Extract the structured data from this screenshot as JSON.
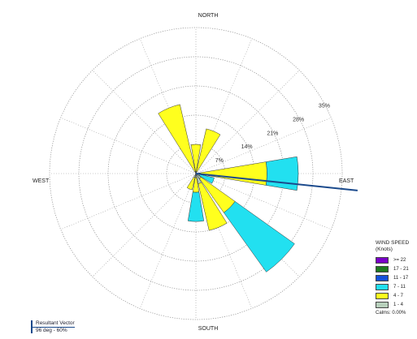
{
  "chart_data": {
    "type": "windrose",
    "directions": {
      "north": "NORTH",
      "south": "SOUTH",
      "east": "EAST",
      "west": "WEST"
    },
    "ring_labels": [
      "7%",
      "14%",
      "21%",
      "28%",
      "35%"
    ],
    "ring_values": [
      7,
      14,
      21,
      28,
      35
    ],
    "grid": true,
    "spokes": 16,
    "speed_bins": [
      {
        "label": ">= 22",
        "color": "#7a00c8"
      },
      {
        "label": "17 - 21",
        "color": "#1e7a1e"
      },
      {
        "label": "11 - 17",
        "color": "#1450d8"
      },
      {
        "label": "7 - 11",
        "color": "#22e0f0"
      },
      {
        "label": "4 - 7",
        "color": "#ffff1e"
      },
      {
        "label": "1 - 4",
        "color": "#b8d0bc"
      }
    ],
    "sectors": [
      {
        "direction": "N",
        "values": [
          0,
          0,
          0,
          0,
          6.5,
          0.5
        ]
      },
      {
        "direction": "NNE",
        "values": [
          0,
          0,
          0,
          0,
          10.5,
          0.5
        ]
      },
      {
        "direction": "NNW",
        "values": [
          0,
          0,
          0,
          0,
          16.5,
          0.5
        ]
      },
      {
        "direction": "E",
        "values": [
          0,
          0,
          0,
          7.5,
          16,
          1
        ]
      },
      {
        "direction": "ESE",
        "values": [
          0,
          0,
          0,
          3.5,
          0,
          1
        ]
      },
      {
        "direction": "SE",
        "values": [
          0,
          0,
          0,
          17.5,
          10,
          1.5
        ]
      },
      {
        "direction": "SSE",
        "values": [
          0,
          0,
          0,
          0,
          11.5,
          2.5
        ]
      },
      {
        "direction": "S",
        "values": [
          0,
          0,
          0,
          7,
          3.5,
          1
        ]
      },
      {
        "direction": "SSW",
        "values": [
          0,
          0,
          0,
          0,
          3,
          1
        ]
      }
    ],
    "resultant_vector_deg": 96,
    "legend": {
      "title_line1": "WIND SPEED",
      "title_line2": "(Knots)",
      "calms": "Calms: 0.00%"
    },
    "resultant": {
      "title": "Resultant Vector",
      "value": "96 deg - 60%"
    }
  }
}
